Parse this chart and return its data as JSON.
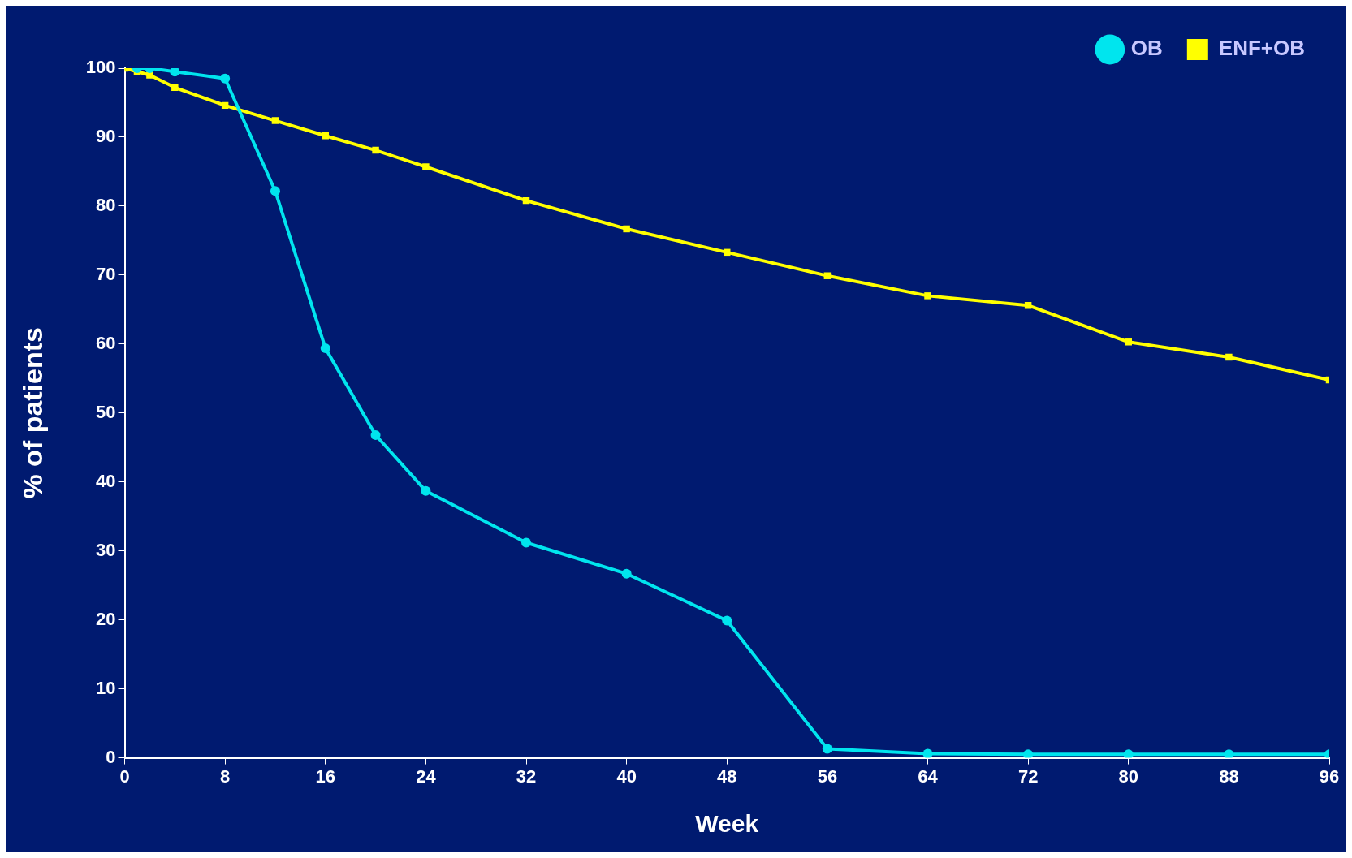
{
  "chart_data": {
    "type": "line",
    "xlabel": "Week",
    "ylabel": "% of patients",
    "xlim": [
      0,
      96
    ],
    "xticks": [
      0,
      8,
      16,
      24,
      32,
      40,
      48,
      56,
      64,
      72,
      80,
      88,
      96
    ],
    "ylim": [
      0,
      100
    ],
    "yticks": [
      0,
      10,
      20,
      30,
      40,
      50,
      60,
      70,
      80,
      90,
      100
    ],
    "x": [
      0,
      1,
      2,
      4,
      8,
      12,
      16,
      20,
      24,
      32,
      40,
      48,
      56,
      64,
      72,
      80,
      88,
      96
    ],
    "series": [
      {
        "name": "ENF+OB",
        "color": "#ffff00",
        "marker": "square",
        "values": [
          100,
          99.5,
          99,
          97.2,
          94.6,
          92.4,
          90.2,
          88.1,
          85.7,
          80.8,
          76.7,
          73.3,
          69.9,
          67,
          65.6,
          60.3,
          58.1,
          54.8
        ]
      },
      {
        "name": "OB",
        "color": "#00e5ee",
        "marker": "circle",
        "values": [
          null,
          100,
          100,
          99.5,
          98.5,
          82.2,
          59.4,
          46.8,
          38.7,
          31.2,
          26.7,
          19.9,
          1.3,
          0.6,
          0.5,
          0.5,
          0.5,
          0.5
        ]
      }
    ],
    "grid": false,
    "legend": "top right"
  }
}
